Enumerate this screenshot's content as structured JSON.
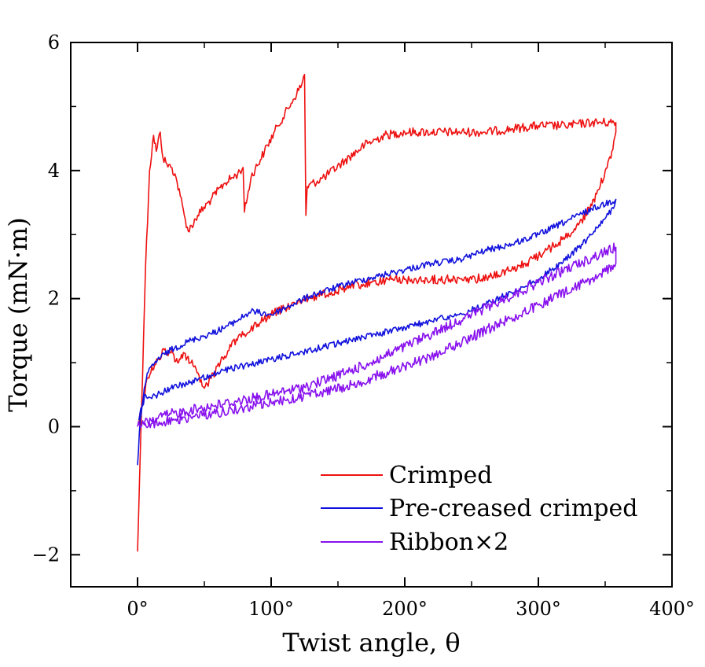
{
  "chart_data": {
    "type": "line",
    "title": "",
    "xlabel": "Twist angle, θ",
    "ylabel": "Torque (mN·m)",
    "xlim": [
      -50,
      400
    ],
    "ylim": [
      -2.5,
      6
    ],
    "xticks": [
      0,
      100,
      200,
      300,
      400
    ],
    "xtick_labels": [
      "0°",
      "100°",
      "200°",
      "300°",
      "400°"
    ],
    "yticks": [
      -2,
      0,
      2,
      4,
      6
    ],
    "ytick_labels": [
      "−2",
      "0",
      "2",
      "4",
      "6"
    ],
    "legend_position": "lower-right",
    "series": [
      {
        "name": "Crimped",
        "color": "#ee1111",
        "noise": 0.07,
        "points": [
          [
            0,
            -1.95
          ],
          [
            3,
            0.3
          ],
          [
            6,
            2.5
          ],
          [
            9,
            4.0
          ],
          [
            12,
            4.55
          ],
          [
            14,
            4.3
          ],
          [
            17,
            4.6
          ],
          [
            19,
            4.2
          ],
          [
            22,
            4.1
          ],
          [
            25,
            4.05
          ],
          [
            28,
            3.95
          ],
          [
            32,
            3.6
          ],
          [
            35,
            3.3
          ],
          [
            38,
            3.05
          ],
          [
            45,
            3.3
          ],
          [
            55,
            3.55
          ],
          [
            65,
            3.8
          ],
          [
            75,
            3.95
          ],
          [
            79,
            4.05
          ],
          [
            80,
            3.35
          ],
          [
            85,
            3.9
          ],
          [
            95,
            4.3
          ],
          [
            105,
            4.7
          ],
          [
            115,
            5.05
          ],
          [
            123,
            5.35
          ],
          [
            125,
            5.5
          ],
          [
            126,
            3.3
          ],
          [
            127,
            3.75
          ],
          [
            140,
            3.9
          ],
          [
            155,
            4.15
          ],
          [
            170,
            4.4
          ],
          [
            185,
            4.55
          ],
          [
            200,
            4.6
          ],
          [
            220,
            4.6
          ],
          [
            240,
            4.6
          ],
          [
            260,
            4.6
          ],
          [
            280,
            4.65
          ],
          [
            300,
            4.7
          ],
          [
            320,
            4.7
          ],
          [
            340,
            4.75
          ],
          [
            358,
            4.75
          ],
          [
            358,
            4.6
          ],
          [
            355,
            4.3
          ],
          [
            350,
            4.0
          ],
          [
            345,
            3.7
          ],
          [
            340,
            3.45
          ],
          [
            330,
            3.15
          ],
          [
            320,
            2.95
          ],
          [
            310,
            2.8
          ],
          [
            300,
            2.65
          ],
          [
            290,
            2.55
          ],
          [
            280,
            2.45
          ],
          [
            265,
            2.35
          ],
          [
            250,
            2.3
          ],
          [
            235,
            2.3
          ],
          [
            220,
            2.3
          ],
          [
            205,
            2.3
          ],
          [
            190,
            2.3
          ],
          [
            175,
            2.25
          ],
          [
            160,
            2.2
          ],
          [
            145,
            2.1
          ],
          [
            130,
            2.0
          ],
          [
            115,
            1.9
          ],
          [
            100,
            1.75
          ],
          [
            90,
            1.6
          ],
          [
            80,
            1.45
          ],
          [
            70,
            1.25
          ],
          [
            62,
            1.0
          ],
          [
            55,
            0.75
          ],
          [
            50,
            0.6
          ],
          [
            46,
            0.8
          ],
          [
            40,
            1.0
          ],
          [
            35,
            1.15
          ],
          [
            30,
            1.0
          ],
          [
            25,
            1.15
          ],
          [
            20,
            1.2
          ],
          [
            15,
            1.05
          ],
          [
            10,
            0.85
          ],
          [
            7,
            0.75
          ],
          [
            4,
            0.4
          ],
          [
            1,
            0.05
          ]
        ]
      },
      {
        "name": "Pre-creased crimped",
        "color": "#1111dd",
        "noise": 0.05,
        "points": [
          [
            0,
            -0.6
          ],
          [
            2,
            0.1
          ],
          [
            5,
            0.6
          ],
          [
            8,
            0.85
          ],
          [
            15,
            1.05
          ],
          [
            25,
            1.2
          ],
          [
            40,
            1.35
          ],
          [
            55,
            1.45
          ],
          [
            70,
            1.6
          ],
          [
            85,
            1.8
          ],
          [
            100,
            1.75
          ],
          [
            115,
            1.9
          ],
          [
            130,
            2.05
          ],
          [
            145,
            2.15
          ],
          [
            160,
            2.25
          ],
          [
            180,
            2.35
          ],
          [
            200,
            2.45
          ],
          [
            220,
            2.55
          ],
          [
            240,
            2.6
          ],
          [
            260,
            2.75
          ],
          [
            280,
            2.85
          ],
          [
            300,
            3.0
          ],
          [
            320,
            3.2
          ],
          [
            340,
            3.4
          ],
          [
            358,
            3.55
          ],
          [
            357,
            3.45
          ],
          [
            350,
            3.25
          ],
          [
            340,
            3.0
          ],
          [
            330,
            2.8
          ],
          [
            320,
            2.6
          ],
          [
            310,
            2.45
          ],
          [
            300,
            2.3
          ],
          [
            280,
            2.1
          ],
          [
            260,
            1.9
          ],
          [
            240,
            1.75
          ],
          [
            220,
            1.65
          ],
          [
            200,
            1.55
          ],
          [
            180,
            1.45
          ],
          [
            160,
            1.35
          ],
          [
            140,
            1.25
          ],
          [
            120,
            1.15
          ],
          [
            100,
            1.05
          ],
          [
            80,
            0.95
          ],
          [
            60,
            0.85
          ],
          [
            40,
            0.7
          ],
          [
            25,
            0.6
          ],
          [
            15,
            0.5
          ],
          [
            10,
            0.45
          ],
          [
            6,
            0.5
          ],
          [
            3,
            0.3
          ],
          [
            1,
            0.1
          ]
        ]
      },
      {
        "name": "Ribbon×2",
        "color": "#8811ee",
        "noise": 0.08,
        "points": [
          [
            0,
            0.0
          ],
          [
            10,
            0.1
          ],
          [
            25,
            0.2
          ],
          [
            50,
            0.3
          ],
          [
            75,
            0.4
          ],
          [
            100,
            0.5
          ],
          [
            125,
            0.62
          ],
          [
            150,
            0.8
          ],
          [
            175,
            1.0
          ],
          [
            200,
            1.25
          ],
          [
            225,
            1.5
          ],
          [
            250,
            1.75
          ],
          [
            275,
            2.0
          ],
          [
            300,
            2.25
          ],
          [
            325,
            2.5
          ],
          [
            358,
            2.8
          ],
          [
            358,
            2.55
          ],
          [
            340,
            2.3
          ],
          [
            320,
            2.1
          ],
          [
            300,
            1.9
          ],
          [
            280,
            1.7
          ],
          [
            260,
            1.5
          ],
          [
            240,
            1.3
          ],
          [
            220,
            1.1
          ],
          [
            200,
            0.95
          ],
          [
            180,
            0.8
          ],
          [
            160,
            0.65
          ],
          [
            140,
            0.55
          ],
          [
            120,
            0.45
          ],
          [
            100,
            0.38
          ],
          [
            80,
            0.3
          ],
          [
            60,
            0.22
          ],
          [
            40,
            0.15
          ],
          [
            20,
            0.08
          ],
          [
            5,
            0.02
          ]
        ]
      }
    ]
  }
}
